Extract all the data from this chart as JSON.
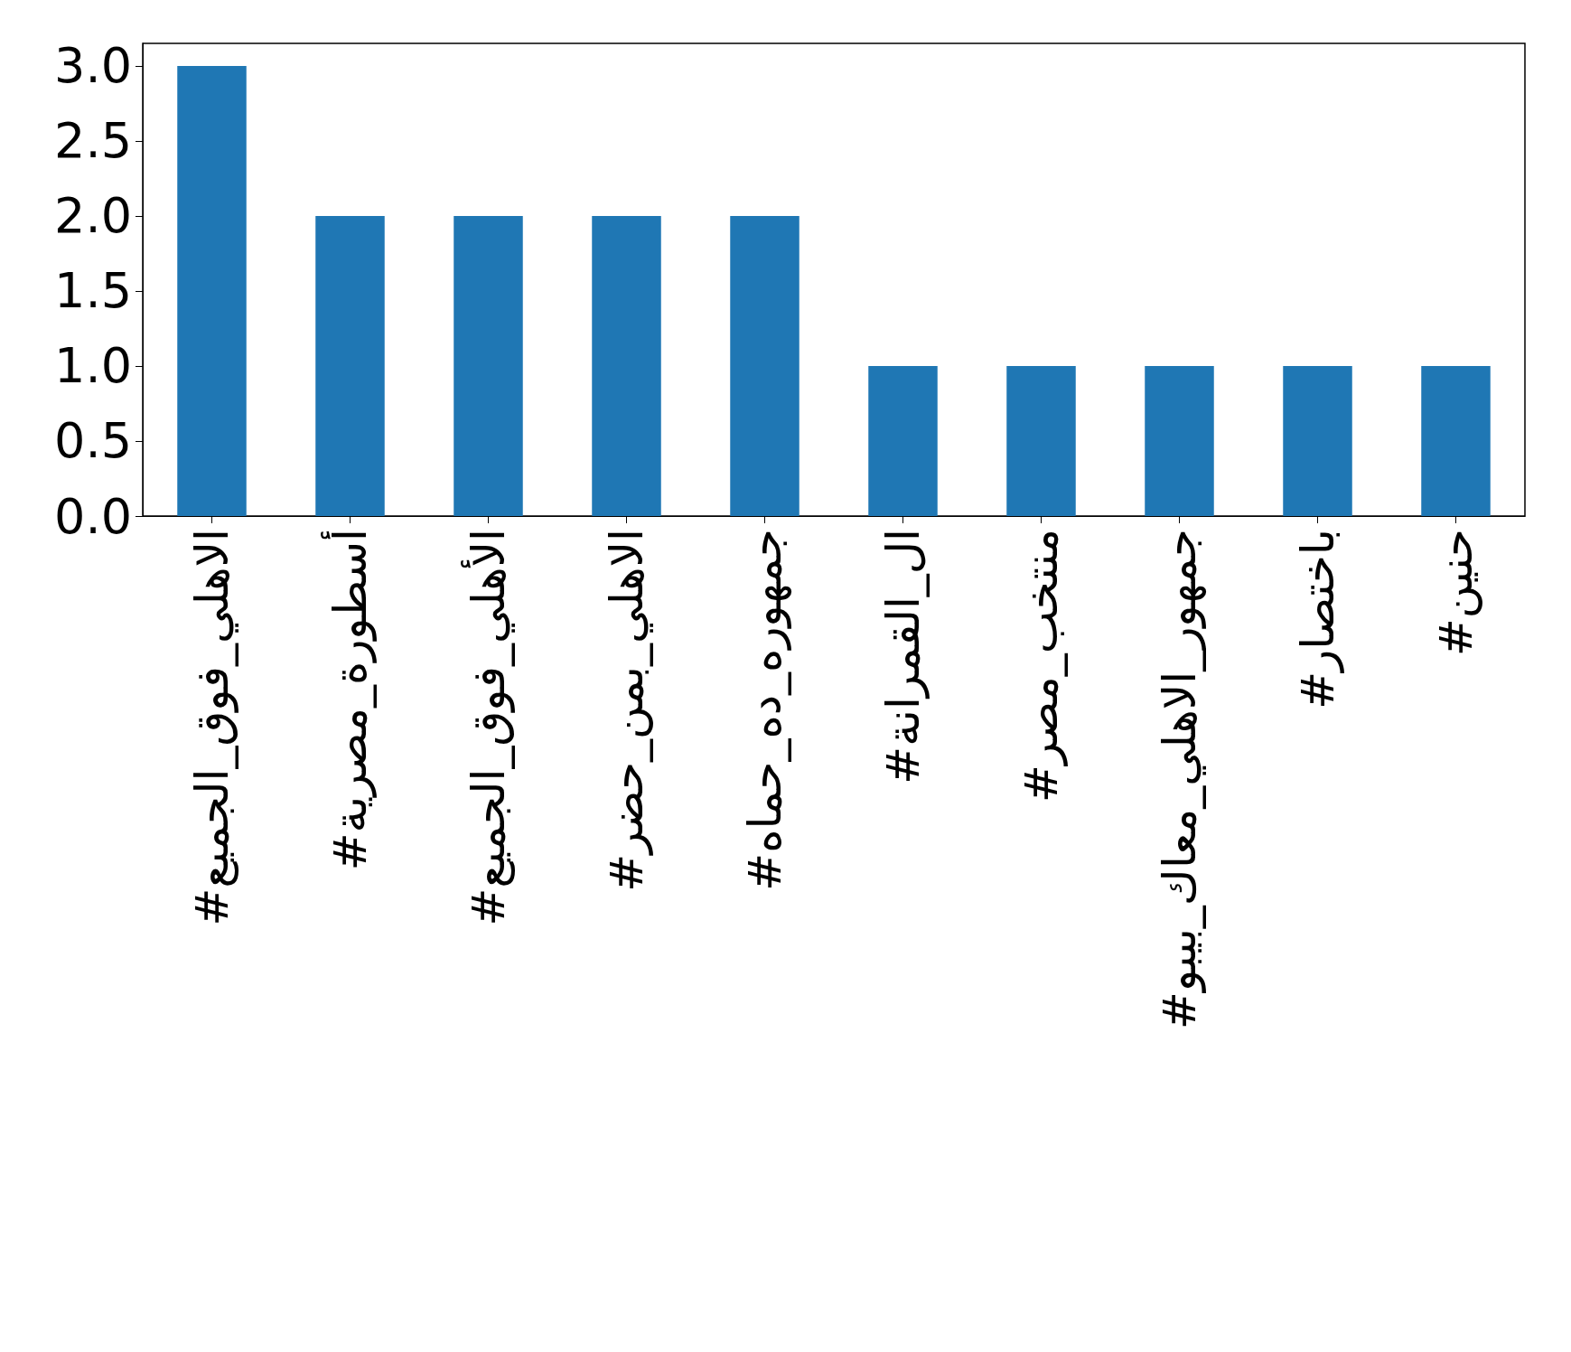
{
  "chart_data": {
    "type": "bar",
    "categories": [
      "#الاهلي_فوق_الجميع",
      "#أسطورة_مصرية",
      "#الأهلي_فوق_الجميع",
      "#الاهلي_بمن_حضر",
      "#جمهوره_ده_حماه",
      "#ال_القمرانة",
      "#منتخب_مصر",
      "#جمهور_الاهلي_معاك_بيبو",
      "#باختصار",
      "#حنين"
    ],
    "values": [
      3,
      2,
      2,
      2,
      2,
      1,
      1,
      1,
      1,
      1
    ],
    "color": "#1f77b4",
    "ylim": [
      0,
      3.15
    ],
    "yticks": [
      {
        "value": 0,
        "label": "0.0"
      },
      {
        "value": 0.5,
        "label": "0.5"
      },
      {
        "value": 1,
        "label": "1.0"
      },
      {
        "value": 1.5,
        "label": "1.5"
      },
      {
        "value": 2,
        "label": "2.0"
      },
      {
        "value": 2.5,
        "label": "2.5"
      },
      {
        "value": 3,
        "label": "3.0"
      }
    ],
    "grid": false
  }
}
